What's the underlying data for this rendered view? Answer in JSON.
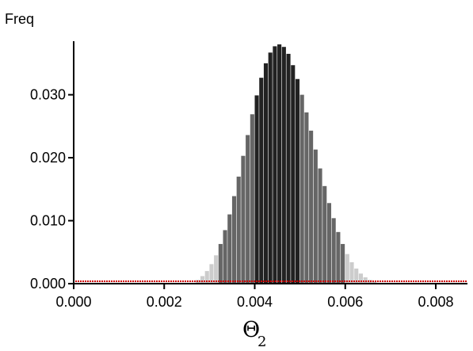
{
  "chart_data": {
    "type": "bar",
    "title": "",
    "ylabel": "Freq",
    "xlabel": {
      "main": "Θ",
      "sub": "2"
    },
    "xlim": [
      0,
      0.0087
    ],
    "ylim": [
      0,
      0.0375
    ],
    "x_ticks": [
      0.0,
      0.002,
      0.004,
      0.006,
      0.008
    ],
    "x_tick_labels": [
      "0.000",
      "0.002",
      "0.004",
      "0.006",
      "0.008"
    ],
    "y_ticks": [
      0.0,
      0.01,
      0.02,
      0.03
    ],
    "y_tick_labels": [
      "0.000",
      "0.010",
      "0.020",
      "0.030"
    ],
    "grid": false,
    "legend": "none",
    "bin_width": 0.0001,
    "colors": {
      "outer": "#cccccc",
      "middle": "#666666",
      "inner": "#222222",
      "baseline": "#cc0000"
    },
    "bands": [
      {
        "color_key": "outer",
        "range": [
          0.0027,
          0.0032
        ]
      },
      {
        "color_key": "middle",
        "range": [
          0.0032,
          0.004
        ]
      },
      {
        "color_key": "inner",
        "range": [
          0.004,
          0.005
        ]
      },
      {
        "color_key": "middle",
        "range": [
          0.005,
          0.006
        ]
      },
      {
        "color_key": "outer",
        "range": [
          0.006,
          0.0068
        ]
      }
    ],
    "series": [
      {
        "x": [
          0.0027,
          0.0028,
          0.0029,
          0.003,
          0.0031,
          0.0032,
          0.0033,
          0.0034,
          0.0035,
          0.0036,
          0.0037,
          0.0038,
          0.0039,
          0.004,
          0.0041,
          0.0042,
          0.0043,
          0.0044,
          0.0045,
          0.0046,
          0.0047,
          0.0048,
          0.0049,
          0.005,
          0.0051,
          0.0052,
          0.0053,
          0.0054,
          0.0055,
          0.0056,
          0.0057,
          0.0058,
          0.0059,
          0.006,
          0.0061,
          0.0062,
          0.0063,
          0.0064,
          0.0065,
          0.0066,
          0.0067
        ],
        "values": [
          0.0006,
          0.0012,
          0.002,
          0.0031,
          0.0045,
          0.0063,
          0.0085,
          0.011,
          0.0139,
          0.017,
          0.0203,
          0.0236,
          0.0269,
          0.0299,
          0.0327,
          0.035,
          0.0367,
          0.0377,
          0.038,
          0.0376,
          0.0365,
          0.0347,
          0.0325,
          0.03,
          0.0272,
          0.0243,
          0.0213,
          0.0183,
          0.0155,
          0.0128,
          0.0104,
          0.0082,
          0.0063,
          0.0047,
          0.0034,
          0.0024,
          0.0016,
          0.001,
          0.0006,
          0.0003,
          0.0001
        ]
      }
    ]
  }
}
